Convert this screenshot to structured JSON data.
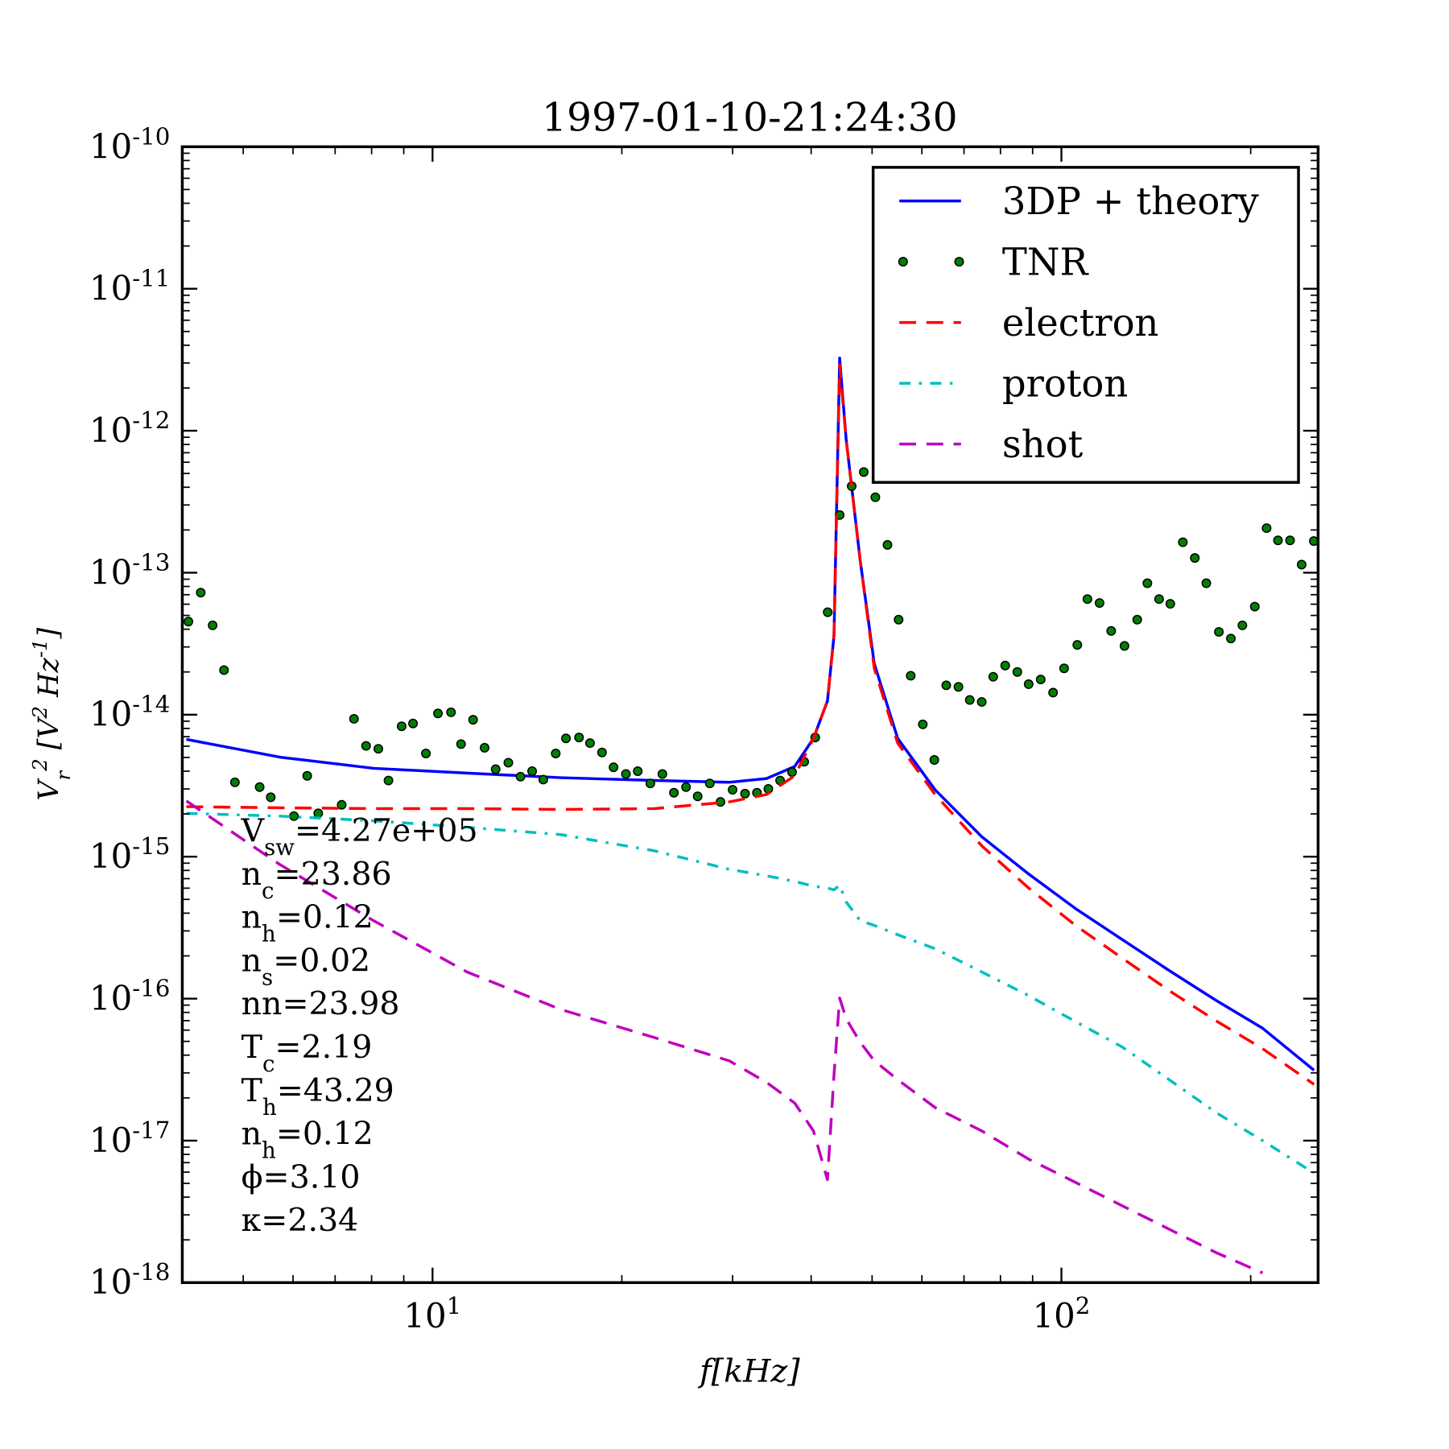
{
  "chart_data": {
    "type": "line",
    "title": "1997-01-10-21:24:30",
    "x_label": "f[kHz]",
    "y_label": "V_{r}^{2} [V^{2} Hz^{-1}]",
    "xscale": "log",
    "yscale": "log",
    "xlim": [
      4,
      256
    ],
    "ylim": [
      1e-18,
      1e-10
    ],
    "xticks": [
      {
        "value": 10,
        "label": "10^{1}"
      },
      {
        "value": 100,
        "label": "10^{2}"
      }
    ],
    "yticks": [
      {
        "value": 1e-18,
        "label": "10^{-18}"
      },
      {
        "value": 1e-17,
        "label": "10^{-17}"
      },
      {
        "value": 1e-16,
        "label": "10^{-16}"
      },
      {
        "value": 1e-15,
        "label": "10^{-15}"
      },
      {
        "value": 1e-14,
        "label": "10^{-14}"
      },
      {
        "value": 1e-13,
        "label": "10^{-13}"
      },
      {
        "value": 1e-12,
        "label": "10^{-12}"
      },
      {
        "value": 1e-11,
        "label": "10^{-11}"
      },
      {
        "value": 1e-10,
        "label": "10^{-10}"
      }
    ],
    "xminorticks": [
      5,
      6,
      7,
      8,
      9,
      20,
      30,
      40,
      50,
      60,
      70,
      80,
      90,
      200
    ],
    "yminorticks": [
      2e-18,
      3e-18,
      4e-18,
      5e-18,
      6e-18,
      7e-18,
      8e-18,
      9e-18,
      2e-17,
      3e-17,
      4e-17,
      5e-17,
      6e-17,
      7e-17,
      8e-17,
      9e-17,
      2e-16,
      3e-16,
      4e-16,
      5e-16,
      6e-16,
      7e-16,
      8e-16,
      9e-16,
      2e-15,
      3e-15,
      4e-15,
      5e-15,
      6e-15,
      7e-15,
      8e-15,
      9e-15,
      2e-14,
      3e-14,
      4e-14,
      5e-14,
      6e-14,
      7e-14,
      8e-14,
      9e-14,
      2e-13,
      3e-13,
      4e-13,
      5e-13,
      6e-13,
      7e-13,
      8e-13,
      9e-13,
      2e-12,
      3e-12,
      4e-12,
      5e-12,
      6e-12,
      7e-12,
      8e-12,
      9e-12,
      2e-11,
      3e-11,
      4e-11,
      5e-11,
      6e-11,
      7e-11,
      8e-11,
      9e-11
    ],
    "legend": "upper right",
    "series": [
      {
        "name": "3DP + theory",
        "color": "#0000ff",
        "style": "solid",
        "x": [
          4.06,
          5.72,
          8.06,
          11.35,
          15.99,
          22.53,
          29.63,
          33.98,
          37.66,
          40.34,
          42.46,
          43.49,
          44.4,
          45.47,
          47.88,
          50.4,
          54.91,
          62.97,
          74.73,
          88.69,
          105.3,
          124.9,
          148.3,
          176.0,
          208.9,
          252.2
        ],
        "values": [
          6.7e-15,
          5.02e-15,
          4.19e-15,
          3.88e-15,
          3.6e-15,
          3.44e-15,
          3.34e-15,
          3.55e-15,
          4.32e-15,
          6.81e-15,
          1.25e-14,
          3.6e-14,
          3.25e-12,
          8.69e-13,
          1.21e-13,
          2.29e-14,
          6.81e-15,
          2.96e-15,
          1.38e-15,
          7.55e-16,
          4.31e-16,
          2.61e-16,
          1.58e-16,
          9.75e-17,
          6.19e-17,
          3.13e-17
        ]
      },
      {
        "name": "TNR",
        "color": "#008000",
        "style": "dots",
        "x": [
          4.09,
          4.28,
          4.47,
          4.66,
          4.85,
          5.31,
          5.53,
          6.02,
          6.32,
          6.58,
          7.17,
          7.5,
          7.84,
          8.2,
          8.51,
          8.93,
          9.31,
          9.76,
          10.2,
          10.7,
          11.1,
          11.6,
          12.1,
          12.6,
          13.2,
          13.8,
          14.4,
          15.0,
          15.7,
          16.3,
          17.1,
          17.8,
          18.6,
          19.4,
          20.3,
          21.2,
          22.2,
          23.2,
          24.2,
          25.3,
          26.4,
          27.6,
          28.7,
          30.0,
          31.4,
          32.8,
          34.2,
          35.7,
          37.3,
          39.0,
          40.6,
          42.5,
          44.4,
          46.4,
          48.5,
          50.6,
          52.9,
          55.1,
          57.6,
          60.2,
          62.8,
          65.6,
          68.6,
          71.5,
          74.7,
          77.9,
          81.4,
          85.1,
          88.7,
          92.7,
          97.0,
          101,
          106,
          110,
          115,
          120,
          126,
          132,
          137,
          143,
          149,
          156,
          163,
          170,
          178,
          186,
          194,
          203,
          212,
          221,
          231,
          241,
          252
        ],
        "values": [
          4.53e-14,
          7.24e-14,
          4.26e-14,
          2.06e-14,
          3.34e-15,
          3.09e-15,
          2.62e-15,
          1.93e-15,
          3.71e-15,
          2.02e-15,
          2.32e-15,
          9.35e-15,
          6.03e-15,
          5.75e-15,
          3.44e-15,
          8.28e-15,
          8.67e-15,
          5.33e-15,
          1.02e-14,
          1.04e-14,
          6.21e-15,
          9.21e-15,
          5.85e-15,
          4.13e-15,
          4.59e-15,
          3.66e-15,
          4e-15,
          3.49e-15,
          5.33e-15,
          6.81e-15,
          6.91e-15,
          6.31e-15,
          5.42e-15,
          4.26e-15,
          3.82e-15,
          4e-15,
          3.28e-15,
          3.82e-15,
          2.82e-15,
          3.09e-15,
          2.66e-15,
          3.28e-15,
          2.43e-15,
          2.96e-15,
          2.78e-15,
          2.82e-15,
          3e-15,
          3.44e-15,
          3.94e-15,
          4.66e-15,
          6.91e-15,
          5.27e-14,
          2.55e-13,
          4.07e-13,
          5.12e-13,
          3.4e-13,
          1.57e-13,
          4.67e-14,
          1.88e-14,
          8.55e-15,
          4.8e-15,
          1.61e-14,
          1.57e-14,
          1.27e-14,
          1.23e-14,
          1.85e-14,
          2.22e-14,
          2e-14,
          1.64e-14,
          1.77e-14,
          1.43e-14,
          2.12e-14,
          3.1e-14,
          6.52e-14,
          6.12e-14,
          3.89e-14,
          3.05e-14,
          4.67e-14,
          8.43e-14,
          6.52e-14,
          6.04e-14,
          1.64e-13,
          1.27e-13,
          8.43e-14,
          3.83e-14,
          3.44e-14,
          4.26e-14,
          5.77e-14,
          2.06e-13,
          1.69e-13,
          1.69e-13,
          1.14e-13,
          1.67e-13
        ]
      },
      {
        "name": "electron",
        "color": "#ff0000",
        "style": "dashed",
        "x": [
          4.06,
          5.72,
          8.06,
          11.35,
          15.99,
          22.53,
          29.63,
          33.98,
          37.66,
          40.34,
          42.46,
          43.49,
          44.4,
          45.47,
          47.88,
          50.4,
          54.91,
          62.97,
          74.73,
          88.69,
          105.3,
          124.9,
          148.3,
          176.0,
          208.9,
          252.2
        ],
        "values": [
          2.25e-15,
          2.21e-15,
          2.18e-15,
          2.18e-15,
          2.15e-15,
          2.18e-15,
          2.43e-15,
          2.74e-15,
          3.71e-15,
          6.81e-15,
          1.25e-14,
          3.6e-14,
          2.92e-12,
          8.69e-13,
          1.21e-13,
          2.12e-14,
          6.31e-15,
          2.74e-15,
          1.19e-15,
          6.01e-16,
          3.28e-16,
          1.93e-16,
          1.14e-16,
          7e-17,
          4.44e-17,
          2.49e-17
        ]
      },
      {
        "name": "proton",
        "color": "#00bfbf",
        "style": "dashdot",
        "x": [
          4.06,
          5.72,
          8.06,
          11.35,
          15.99,
          22.53,
          29.63,
          33.98,
          37.66,
          40.34,
          42.46,
          43.49,
          44.4,
          45.47,
          47.88,
          50.4,
          54.91,
          62.97,
          74.73,
          88.69,
          105.3,
          124.9,
          148.3,
          176.0,
          208.9,
          252.2
        ],
        "values": [
          2.02e-15,
          1.93e-15,
          1.79e-15,
          1.61e-15,
          1.43e-15,
          1.1e-15,
          8.15e-16,
          7.33e-16,
          6.69e-16,
          6.2e-16,
          6.01e-16,
          5.84e-16,
          6.3e-16,
          4.8e-16,
          3.54e-16,
          3.28e-16,
          2.82e-16,
          2.25e-16,
          1.54e-16,
          1.05e-16,
          6.89e-17,
          4.57e-17,
          2.69e-17,
          1.58e-17,
          1e-17,
          5.91e-18
        ]
      },
      {
        "name": "shot",
        "color": "#bf00bf",
        "style": "dashed",
        "x": [
          4.06,
          5.72,
          8.06,
          11.35,
          15.99,
          22.53,
          29.63,
          33.98,
          37.66,
          40.34,
          42.46,
          43.49,
          44.4,
          45.47,
          47.88,
          50.4,
          54.91,
          62.97,
          74.73,
          88.69,
          105.3,
          124.9,
          148.3,
          176.0,
          208.9,
          252.2
        ],
        "values": [
          2.47e-15,
          8.79e-16,
          3.54e-16,
          1.54e-16,
          8.39e-17,
          5.32e-17,
          3.65e-17,
          2.57e-17,
          1.84e-17,
          1.17e-17,
          5.31e-18,
          2.9e-17,
          1.01e-16,
          7.21e-17,
          4.93e-17,
          3.65e-17,
          2.69e-17,
          1.71e-17,
          1.17e-17,
          7.41e-18,
          5.08e-18,
          3.48e-18,
          2.38e-18,
          1.63e-18,
          1.17e-18,
          null
        ]
      }
    ],
    "annotations": [
      "V_{sw}=4.27e+05",
      "n_{c}=23.86",
      "n_{h}=0.12",
      "n_{s}=0.02",
      "nn=23.98",
      "T_{c}=2.19",
      "T_{h}=43.29",
      "n_{h}=0.12",
      "ϕ=3.10",
      "κ=2.34"
    ]
  }
}
